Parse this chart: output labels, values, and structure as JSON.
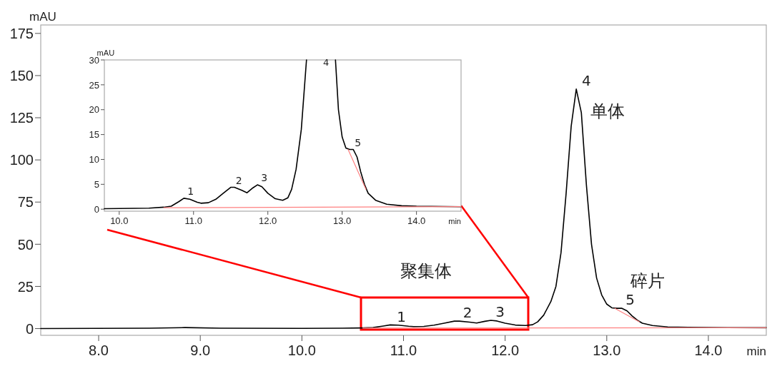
{
  "chart_data": [
    {
      "type": "line",
      "xlabel": "min",
      "ylabel": "mAU",
      "xlim": [
        7.43,
        14.57
      ],
      "ylim": [
        -4,
        180
      ],
      "xticks": [
        {
          "value": 8,
          "label": "8.0"
        },
        {
          "value": 9,
          "label": "9.0"
        },
        {
          "value": 10,
          "label": "10.0"
        },
        {
          "value": 11,
          "label": "11.0"
        },
        {
          "value": 12,
          "label": "12.0"
        },
        {
          "value": 13,
          "label": "13.0"
        },
        {
          "value": 14,
          "label": "14.0"
        }
      ],
      "yticks": [
        0,
        25,
        50,
        75,
        100,
        125,
        150,
        175
      ],
      "grid": false,
      "marker": "none",
      "line_style": "solid",
      "series": [
        {
          "color": "#000000",
          "x": [
            7.43,
            8.5,
            8.85,
            9.2,
            10.0,
            10.4,
            10.6,
            10.7,
            10.8,
            10.87,
            10.95,
            11.05,
            11.1,
            11.2,
            11.3,
            11.4,
            11.5,
            11.55,
            11.65,
            11.72,
            11.8,
            11.86,
            11.92,
            12.0,
            12.1,
            12.2,
            12.27,
            12.32,
            12.38,
            12.45,
            12.5,
            12.55,
            12.6,
            12.65,
            12.7,
            12.75,
            12.8,
            12.85,
            12.9,
            12.95,
            13.0,
            13.05,
            13.1,
            13.15,
            13.2,
            13.25,
            13.3,
            13.35,
            13.45,
            13.6,
            13.8,
            14.0,
            14.57
          ],
          "values": [
            0,
            0.2,
            0.6,
            0.2,
            0.1,
            0.2,
            0.4,
            0.6,
            1.5,
            2.2,
            2.0,
            1.4,
            1.2,
            1.3,
            2.0,
            3.2,
            4.4,
            4.4,
            3.8,
            3.3,
            4.3,
            4.9,
            4.5,
            3.2,
            2.1,
            1.8,
            2.3,
            4,
            8,
            16,
            25,
            45,
            80,
            120,
            142,
            128,
            85,
            50,
            30,
            20,
            14.5,
            12.3,
            12.0,
            12.0,
            10.5,
            7.5,
            5,
            3.2,
            1.8,
            1.0,
            0.7,
            0.6,
            0.5
          ]
        },
        {
          "color": "#ff8080",
          "x": [
            10.6,
            14.57
          ],
          "values": [
            0.3,
            0.5
          ]
        },
        {
          "color": "#ff8080",
          "x": [
            13.08,
            13.32
          ],
          "values": [
            12,
            4
          ]
        }
      ],
      "annotations": [
        {
          "text": "1",
          "x": 10.9,
          "y": 2
        },
        {
          "text": "2",
          "x": 11.55,
          "y": 4.5
        },
        {
          "text": "3",
          "x": 11.87,
          "y": 5
        },
        {
          "text": "4",
          "x": 12.72,
          "y": 142
        },
        {
          "text": "5",
          "x": 13.15,
          "y": 12
        },
        "聚集体",
        "单体",
        "碎片"
      ]
    },
    {
      "type": "line",
      "xlabel": "min",
      "ylabel": "mAU",
      "xlim": [
        9.8,
        14.6
      ],
      "ylim": [
        -0.4,
        30
      ],
      "xticks": [
        {
          "value": 10,
          "label": "10.0"
        },
        {
          "value": 11,
          "label": "11.0"
        },
        {
          "value": 12,
          "label": "12.0"
        },
        {
          "value": 13,
          "label": "13.0"
        },
        {
          "value": 14,
          "label": "14.0"
        }
      ],
      "yticks": [
        0,
        5,
        10,
        15,
        20,
        25,
        30
      ],
      "grid": false,
      "marker": "none",
      "line_style": "solid",
      "series": [
        {
          "color": "#000000",
          "x": [
            9.8,
            10.4,
            10.6,
            10.7,
            10.8,
            10.87,
            10.95,
            11.05,
            11.1,
            11.2,
            11.3,
            11.4,
            11.5,
            11.55,
            11.65,
            11.72,
            11.8,
            11.86,
            11.92,
            12.0,
            12.1,
            12.2,
            12.27,
            12.32,
            12.38,
            12.45,
            12.52
          ],
          "values": [
            0.1,
            0.2,
            0.4,
            0.6,
            1.5,
            2.2,
            2.0,
            1.4,
            1.2,
            1.3,
            2.0,
            3.2,
            4.4,
            4.4,
            3.8,
            3.3,
            4.3,
            4.9,
            4.5,
            3.2,
            2.1,
            1.8,
            2.3,
            4,
            8,
            16,
            30
          ]
        },
        {
          "color": "#000000",
          "x": [
            12.91,
            12.95,
            13.0,
            13.05,
            13.1,
            13.15,
            13.2,
            13.25,
            13.3,
            13.35,
            13.45,
            13.6,
            13.8,
            14.0,
            14.6
          ],
          "values": [
            30,
            20,
            14.5,
            12.3,
            12.0,
            12.0,
            10.5,
            7.5,
            5,
            3.2,
            1.8,
            1.0,
            0.7,
            0.6,
            0.5
          ]
        },
        {
          "color": "#ff8080",
          "x": [
            10.6,
            14.6
          ],
          "values": [
            0.3,
            0.5
          ]
        },
        {
          "color": "#ff8080",
          "x": [
            13.08,
            13.32
          ],
          "values": [
            12,
            4
          ]
        }
      ],
      "annotations": [
        {
          "text": "1",
          "x": 10.87,
          "y": 2.2
        },
        {
          "text": "2",
          "x": 11.52,
          "y": 4.4
        },
        {
          "text": "3",
          "x": 11.86,
          "y": 4.9
        },
        "4",
        {
          "text": "5",
          "x": 13.12,
          "y": 12
        }
      ]
    }
  ]
}
